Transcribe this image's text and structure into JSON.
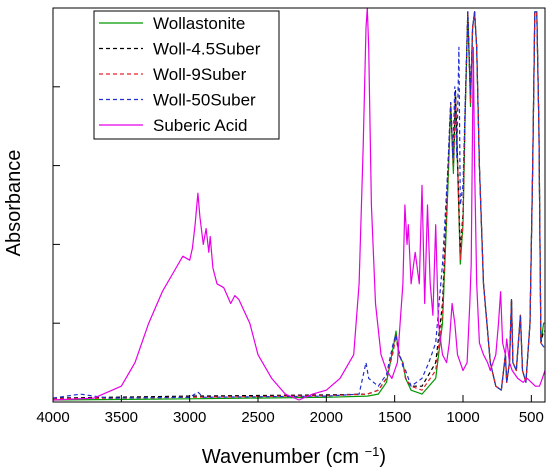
{
  "chart_data": {
    "type": "line",
    "xlabel": "Wavenumber (cm ",
    "xlabel_superscript": "−1",
    "xlabel_suffix": ")",
    "ylabel": "Absorbance",
    "xlim": [
      4000,
      400
    ],
    "ylim": [
      0,
      1
    ],
    "x_reversed": true,
    "y_tick_labels_shown": false,
    "x_ticks": [
      {
        "value": 4000,
        "label": "4000"
      },
      {
        "value": 3500,
        "label": "3500"
      },
      {
        "value": 3000,
        "label": "3000"
      },
      {
        "value": 2500,
        "label": "2500"
      },
      {
        "value": 2000,
        "label": "2000"
      },
      {
        "value": 1500,
        "label": "1500"
      },
      {
        "value": 1000,
        "label": "1000"
      },
      {
        "value": 500,
        "label": "500"
      }
    ],
    "y_ticks": [
      0,
      0.2,
      0.4,
      0.6,
      0.8,
      1.0
    ],
    "legend_position": "top-left",
    "series": [
      {
        "name": "Wollastonite",
        "color": "#009900",
        "dash": "solid",
        "points": [
          [
            4000,
            0.005
          ],
          [
            3000,
            0.008
          ],
          [
            2000,
            0.012
          ],
          [
            1700,
            0.015
          ],
          [
            1620,
            0.02
          ],
          [
            1560,
            0.05
          ],
          [
            1510,
            0.14
          ],
          [
            1490,
            0.18
          ],
          [
            1470,
            0.12
          ],
          [
            1440,
            0.1
          ],
          [
            1420,
            0.06
          ],
          [
            1380,
            0.03
          ],
          [
            1300,
            0.02
          ],
          [
            1200,
            0.06
          ],
          [
            1150,
            0.2
          ],
          [
            1110,
            0.55
          ],
          [
            1090,
            0.75
          ],
          [
            1070,
            0.58
          ],
          [
            1055,
            0.78
          ],
          [
            1040,
            0.6
          ],
          [
            1020,
            0.35
          ],
          [
            1000,
            0.45
          ],
          [
            985,
            0.72
          ],
          [
            965,
            0.99
          ],
          [
            945,
            0.75
          ],
          [
            930,
            0.95
          ],
          [
            915,
            0.99
          ],
          [
            900,
            0.9
          ],
          [
            880,
            0.6
          ],
          [
            850,
            0.3
          ],
          [
            800,
            0.1
          ],
          [
            760,
            0.04
          ],
          [
            720,
            0.03
          ],
          [
            690,
            0.12
          ],
          [
            680,
            0.05
          ],
          [
            660,
            0.1
          ],
          [
            645,
            0.26
          ],
          [
            635,
            0.1
          ],
          [
            610,
            0.08
          ],
          [
            580,
            0.22
          ],
          [
            565,
            0.08
          ],
          [
            540,
            0.05
          ],
          [
            510,
            0.2
          ],
          [
            490,
            0.6
          ],
          [
            475,
            0.99
          ],
          [
            460,
            0.99
          ],
          [
            445,
            0.7
          ],
          [
            430,
            0.15
          ],
          [
            410,
            0.2
          ],
          [
            400,
            0.2
          ]
        ]
      },
      {
        "name": "Woll-4.5Suber",
        "color": "#000000",
        "dash": "4,3",
        "points": [
          [
            4000,
            0.01
          ],
          [
            3000,
            0.015
          ],
          [
            2000,
            0.018
          ],
          [
            1700,
            0.02
          ],
          [
            1620,
            0.03
          ],
          [
            1560,
            0.06
          ],
          [
            1510,
            0.13
          ],
          [
            1490,
            0.17
          ],
          [
            1470,
            0.12
          ],
          [
            1440,
            0.1
          ],
          [
            1420,
            0.06
          ],
          [
            1380,
            0.04
          ],
          [
            1300,
            0.04
          ],
          [
            1200,
            0.1
          ],
          [
            1150,
            0.25
          ],
          [
            1110,
            0.6
          ],
          [
            1090,
            0.76
          ],
          [
            1070,
            0.6
          ],
          [
            1055,
            0.79
          ],
          [
            1040,
            0.62
          ],
          [
            1020,
            0.38
          ],
          [
            1000,
            0.48
          ],
          [
            985,
            0.74
          ],
          [
            965,
            0.99
          ],
          [
            945,
            0.77
          ],
          [
            930,
            0.95
          ],
          [
            915,
            0.99
          ],
          [
            900,
            0.9
          ],
          [
            880,
            0.6
          ],
          [
            850,
            0.3
          ],
          [
            800,
            0.1
          ],
          [
            760,
            0.04
          ],
          [
            720,
            0.03
          ],
          [
            690,
            0.12
          ],
          [
            680,
            0.05
          ],
          [
            660,
            0.1
          ],
          [
            645,
            0.26
          ],
          [
            635,
            0.1
          ],
          [
            610,
            0.08
          ],
          [
            580,
            0.22
          ],
          [
            565,
            0.08
          ],
          [
            540,
            0.05
          ],
          [
            510,
            0.2
          ],
          [
            490,
            0.6
          ],
          [
            475,
            0.99
          ],
          [
            460,
            0.99
          ],
          [
            445,
            0.7
          ],
          [
            430,
            0.15
          ],
          [
            410,
            0.18
          ],
          [
            400,
            0.18
          ]
        ]
      },
      {
        "name": "Woll-9Suber",
        "color": "#e8202a",
        "dash": "4,3",
        "points": [
          [
            4000,
            0.008
          ],
          [
            3000,
            0.012
          ],
          [
            2000,
            0.016
          ],
          [
            1700,
            0.02
          ],
          [
            1620,
            0.03
          ],
          [
            1560,
            0.06
          ],
          [
            1510,
            0.13
          ],
          [
            1490,
            0.17
          ],
          [
            1470,
            0.12
          ],
          [
            1440,
            0.1
          ],
          [
            1420,
            0.06
          ],
          [
            1380,
            0.04
          ],
          [
            1300,
            0.03
          ],
          [
            1200,
            0.08
          ],
          [
            1150,
            0.22
          ],
          [
            1110,
            0.58
          ],
          [
            1090,
            0.76
          ],
          [
            1070,
            0.6
          ],
          [
            1055,
            0.78
          ],
          [
            1040,
            0.62
          ],
          [
            1020,
            0.36
          ],
          [
            1000,
            0.46
          ],
          [
            985,
            0.73
          ],
          [
            965,
            0.99
          ],
          [
            945,
            0.76
          ],
          [
            930,
            0.95
          ],
          [
            915,
            0.99
          ],
          [
            900,
            0.9
          ],
          [
            880,
            0.6
          ],
          [
            850,
            0.3
          ],
          [
            800,
            0.1
          ],
          [
            760,
            0.04
          ],
          [
            720,
            0.03
          ],
          [
            690,
            0.12
          ],
          [
            680,
            0.05
          ],
          [
            660,
            0.1
          ],
          [
            645,
            0.26
          ],
          [
            635,
            0.1
          ],
          [
            610,
            0.08
          ],
          [
            580,
            0.22
          ],
          [
            565,
            0.08
          ],
          [
            540,
            0.05
          ],
          [
            510,
            0.2
          ],
          [
            490,
            0.6
          ],
          [
            475,
            0.99
          ],
          [
            460,
            0.99
          ],
          [
            445,
            0.7
          ],
          [
            430,
            0.15
          ],
          [
            410,
            0.14
          ],
          [
            400,
            0.14
          ]
        ]
      },
      {
        "name": "Woll-50Suber",
        "color": "#1f2fd0",
        "dash": "4,3",
        "points": [
          [
            4000,
            0.01
          ],
          [
            3800,
            0.02
          ],
          [
            3700,
            0.015
          ],
          [
            3600,
            0.01
          ],
          [
            3000,
            0.012
          ],
          [
            2940,
            0.025
          ],
          [
            2900,
            0.012
          ],
          [
            2000,
            0.015
          ],
          [
            1760,
            0.02
          ],
          [
            1710,
            0.1
          ],
          [
            1690,
            0.06
          ],
          [
            1620,
            0.04
          ],
          [
            1560,
            0.07
          ],
          [
            1510,
            0.15
          ],
          [
            1490,
            0.17
          ],
          [
            1470,
            0.13
          ],
          [
            1440,
            0.09
          ],
          [
            1420,
            0.08
          ],
          [
            1380,
            0.04
          ],
          [
            1300,
            0.06
          ],
          [
            1250,
            0.1
          ],
          [
            1200,
            0.15
          ],
          [
            1150,
            0.35
          ],
          [
            1110,
            0.6
          ],
          [
            1090,
            0.76
          ],
          [
            1075,
            0.62
          ],
          [
            1060,
            0.8
          ],
          [
            1045,
            0.62
          ],
          [
            1030,
            0.9
          ],
          [
            1020,
            0.5
          ],
          [
            1000,
            0.55
          ],
          [
            985,
            0.75
          ],
          [
            965,
            0.99
          ],
          [
            945,
            0.78
          ],
          [
            930,
            0.95
          ],
          [
            915,
            0.99
          ],
          [
            900,
            0.9
          ],
          [
            880,
            0.6
          ],
          [
            850,
            0.3
          ],
          [
            800,
            0.1
          ],
          [
            760,
            0.04
          ],
          [
            720,
            0.03
          ],
          [
            690,
            0.12
          ],
          [
            680,
            0.05
          ],
          [
            660,
            0.1
          ],
          [
            645,
            0.26
          ],
          [
            635,
            0.1
          ],
          [
            610,
            0.08
          ],
          [
            580,
            0.22
          ],
          [
            565,
            0.08
          ],
          [
            540,
            0.05
          ],
          [
            510,
            0.2
          ],
          [
            490,
            0.6
          ],
          [
            475,
            0.99
          ],
          [
            460,
            0.99
          ],
          [
            445,
            0.7
          ],
          [
            430,
            0.15
          ],
          [
            410,
            0.14
          ],
          [
            400,
            0.14
          ]
        ]
      },
      {
        "name": "Suberic Acid",
        "color": "#e600e6",
        "dash": "solid",
        "points": [
          [
            4000,
            0.005
          ],
          [
            3700,
            0.01
          ],
          [
            3500,
            0.04
          ],
          [
            3400,
            0.1
          ],
          [
            3300,
            0.2
          ],
          [
            3200,
            0.28
          ],
          [
            3100,
            0.34
          ],
          [
            3050,
            0.37
          ],
          [
            3000,
            0.36
          ],
          [
            2980,
            0.39
          ],
          [
            2960,
            0.45
          ],
          [
            2940,
            0.53
          ],
          [
            2925,
            0.47
          ],
          [
            2900,
            0.4
          ],
          [
            2880,
            0.44
          ],
          [
            2860,
            0.38
          ],
          [
            2850,
            0.42
          ],
          [
            2830,
            0.34
          ],
          [
            2800,
            0.3
          ],
          [
            2750,
            0.29
          ],
          [
            2700,
            0.25
          ],
          [
            2670,
            0.27
          ],
          [
            2640,
            0.26
          ],
          [
            2600,
            0.23
          ],
          [
            2560,
            0.2
          ],
          [
            2500,
            0.12
          ],
          [
            2400,
            0.06
          ],
          [
            2300,
            0.02
          ],
          [
            2200,
            0.005
          ],
          [
            2100,
            0.02
          ],
          [
            2000,
            0.03
          ],
          [
            1900,
            0.06
          ],
          [
            1800,
            0.12
          ],
          [
            1760,
            0.3
          ],
          [
            1730,
            0.65
          ],
          [
            1710,
            0.95
          ],
          [
            1700,
            1.0
          ],
          [
            1690,
            0.9
          ],
          [
            1670,
            0.5
          ],
          [
            1640,
            0.25
          ],
          [
            1600,
            0.12
          ],
          [
            1560,
            0.08
          ],
          [
            1520,
            0.06
          ],
          [
            1480,
            0.1
          ],
          [
            1460,
            0.2
          ],
          [
            1440,
            0.3
          ],
          [
            1425,
            0.5
          ],
          [
            1410,
            0.4
          ],
          [
            1400,
            0.45
          ],
          [
            1380,
            0.3
          ],
          [
            1350,
            0.38
          ],
          [
            1320,
            0.3
          ],
          [
            1300,
            0.55
          ],
          [
            1280,
            0.25
          ],
          [
            1260,
            0.5
          ],
          [
            1240,
            0.3
          ],
          [
            1220,
            0.22
          ],
          [
            1200,
            0.45
          ],
          [
            1180,
            0.2
          ],
          [
            1150,
            0.12
          ],
          [
            1120,
            0.1
          ],
          [
            1100,
            0.15
          ],
          [
            1080,
            0.25
          ],
          [
            1060,
            0.2
          ],
          [
            1040,
            0.12
          ],
          [
            1000,
            0.08
          ],
          [
            970,
            0.1
          ],
          [
            950,
            0.25
          ],
          [
            940,
            0.35
          ],
          [
            925,
            0.9
          ],
          [
            915,
            0.6
          ],
          [
            900,
            0.3
          ],
          [
            880,
            0.15
          ],
          [
            850,
            0.12
          ],
          [
            820,
            0.1
          ],
          [
            800,
            0.08
          ],
          [
            760,
            0.12
          ],
          [
            740,
            0.2
          ],
          [
            725,
            0.28
          ],
          [
            710,
            0.15
          ],
          [
            690,
            0.12
          ],
          [
            680,
            0.16
          ],
          [
            660,
            0.1
          ],
          [
            640,
            0.08
          ],
          [
            600,
            0.06
          ],
          [
            560,
            0.05
          ],
          [
            530,
            0.06
          ],
          [
            500,
            0.05
          ],
          [
            470,
            0.04
          ],
          [
            440,
            0.04
          ],
          [
            420,
            0.06
          ],
          [
            400,
            0.08
          ]
        ]
      }
    ]
  }
}
